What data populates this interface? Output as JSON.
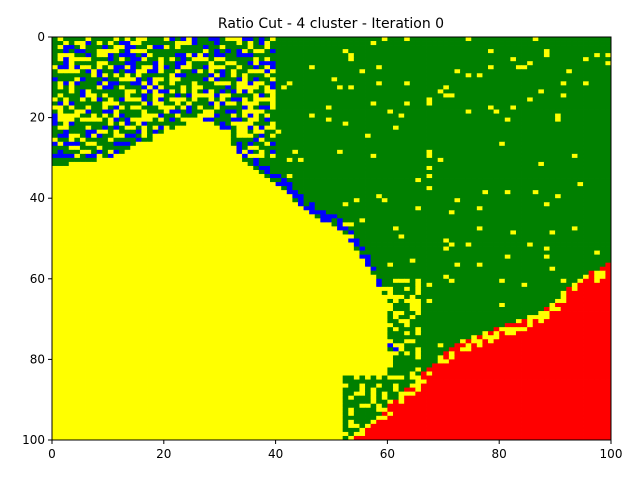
{
  "chart_data": {
    "type": "heatmap",
    "title": "Ratio Cut - 4 cluster - Iteration 0",
    "xlabel": "",
    "ylabel": "",
    "xlim": [
      0,
      100
    ],
    "ylim": [
      100,
      0
    ],
    "x_ticks": [
      "0",
      "20",
      "40",
      "60",
      "80",
      "100"
    ],
    "y_ticks": [
      "0",
      "20",
      "40",
      "60",
      "80",
      "100"
    ],
    "grid": false,
    "clusters": [
      {
        "id": 0,
        "color": "#ffff00"
      },
      {
        "id": 1,
        "color": "#008000"
      },
      {
        "id": 2,
        "color": "#0000ff"
      },
      {
        "id": 3,
        "color": "#ff0000"
      }
    ],
    "region_boundaries": {
      "yellow_green": [
        [
          0,
          32
        ],
        [
          10,
          30
        ],
        [
          20,
          24
        ],
        [
          26,
          20
        ],
        [
          30,
          22
        ],
        [
          34,
          30
        ],
        [
          40,
          36
        ],
        [
          46,
          44
        ],
        [
          52,
          48
        ],
        [
          56,
          56
        ],
        [
          60,
          66
        ],
        [
          60,
          78
        ],
        [
          55,
          84
        ],
        [
          52,
          86
        ],
        [
          52,
          100
        ]
      ],
      "green_red": [
        [
          52,
          100
        ],
        [
          60,
          92
        ],
        [
          66,
          84
        ],
        [
          72,
          76
        ],
        [
          80,
          72
        ],
        [
          88,
          68
        ],
        [
          94,
          60
        ],
        [
          100,
          56
        ]
      ]
    }
  }
}
